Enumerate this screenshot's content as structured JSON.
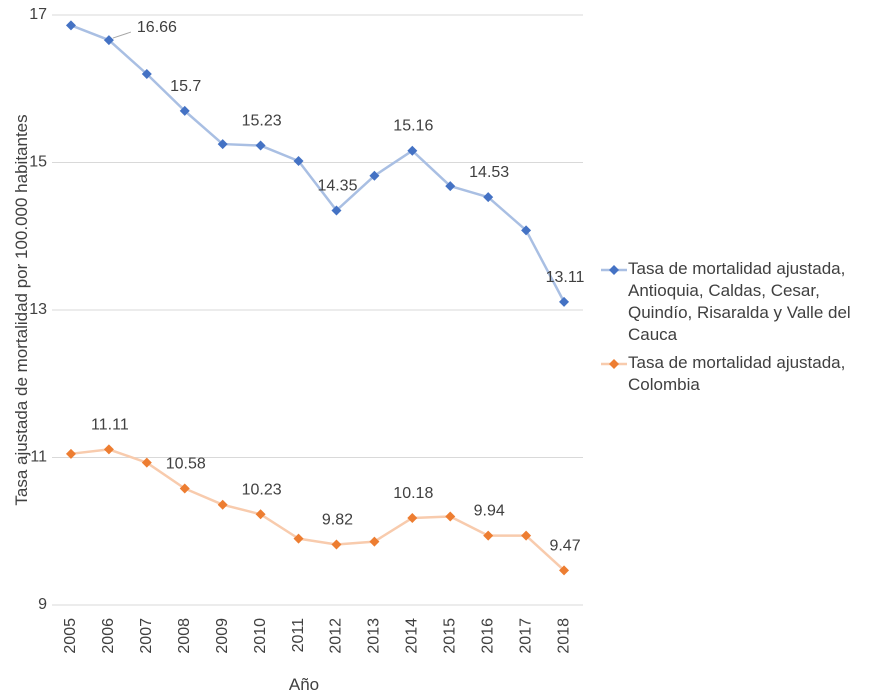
{
  "chart_data": {
    "type": "line",
    "x": [
      "2005",
      "2006",
      "2007",
      "2008",
      "2009",
      "2010",
      "2011",
      "2012",
      "2013",
      "2014",
      "2015",
      "2016",
      "2017",
      "2018"
    ],
    "xlabel": "Año",
    "ylabel": "Tasa ajustada de mortalidad por 100.000 habitantes",
    "ylim": [
      9,
      17
    ],
    "yticks": [
      "9",
      "11",
      "13",
      "15",
      "17"
    ],
    "grid": "horizontal",
    "legend_position": "right",
    "series": [
      {
        "name": "Tasa de mortalidad ajustada, Antioquia, Caldas, Cesar, Quindío, Risaralda y Valle del Cauca",
        "color": "#4472C4",
        "line_color": "#A9BFE3",
        "values": [
          16.86,
          16.66,
          16.2,
          15.7,
          15.25,
          15.23,
          15.02,
          14.35,
          14.82,
          15.16,
          14.68,
          14.53,
          14.08,
          13.11
        ],
        "labels": [
          null,
          "16.66",
          null,
          "15.7",
          null,
          "15.23",
          null,
          "14.35",
          null,
          "15.16",
          null,
          "14.53",
          null,
          "13.11"
        ]
      },
      {
        "name": "Tasa de mortalidad ajustada, Colombia",
        "color": "#ED7D31",
        "line_color": "#F8CBAD",
        "values": [
          11.05,
          11.11,
          10.93,
          10.58,
          10.36,
          10.23,
          9.9,
          9.82,
          9.86,
          10.18,
          10.2,
          9.94,
          9.94,
          9.47
        ],
        "labels": [
          null,
          "11.11",
          null,
          "10.58",
          null,
          "10.23",
          null,
          "9.82",
          null,
          "10.18",
          null,
          "9.94",
          null,
          "9.47"
        ]
      }
    ]
  },
  "legend": {
    "items": [
      "Tasa de mortalidad ajustada, Antioquia, Caldas, Cesar, Quindío, Risaralda y Valle del Cauca",
      "Tasa de mortalidad ajustada, Colombia"
    ]
  }
}
